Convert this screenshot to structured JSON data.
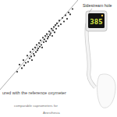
{
  "chart_data": {
    "type": "scatter",
    "xlabel": "ured with the reference oxymeter",
    "xlim": [
      0,
      100
    ],
    "ylim": [
      0,
      100
    ],
    "tick_labels": false,
    "grid": false,
    "series": [
      {
        "type": "scatter",
        "color": "#333333",
        "marker": "circle",
        "x": [
          22,
          25,
          28,
          30,
          31,
          33,
          35,
          36,
          38,
          39,
          40,
          41,
          42,
          43,
          44,
          45,
          46,
          47,
          48,
          49,
          50,
          51,
          52,
          53,
          54,
          55,
          56,
          57,
          58,
          59,
          60,
          61,
          62,
          63,
          64,
          65,
          66,
          67,
          68,
          69,
          70,
          71,
          72,
          73,
          75,
          76,
          78,
          80,
          82,
          84,
          86,
          88,
          90,
          93
        ],
        "values": [
          20,
          28,
          24,
          33,
          27,
          30,
          38,
          31,
          35,
          42,
          37,
          33,
          45,
          40,
          38,
          47,
          42,
          50,
          44,
          46,
          52,
          48,
          55,
          50,
          47,
          58,
          53,
          56,
          60,
          54,
          62,
          57,
          59,
          65,
          61,
          63,
          68,
          60,
          66,
          70,
          64,
          72,
          68,
          74,
          71,
          77,
          73,
          80,
          76,
          83,
          79,
          86,
          84,
          90
        ]
      },
      {
        "type": "line",
        "color": "#9a9a9a",
        "line_style": "solid",
        "x": [
          0,
          100
        ],
        "values": [
          0,
          100
        ]
      }
    ]
  },
  "figure": {
    "label": "Sidestream hole",
    "display": "385",
    "caption": [
      "comparable capnometers for",
      "Anesthesia"
    ]
  }
}
